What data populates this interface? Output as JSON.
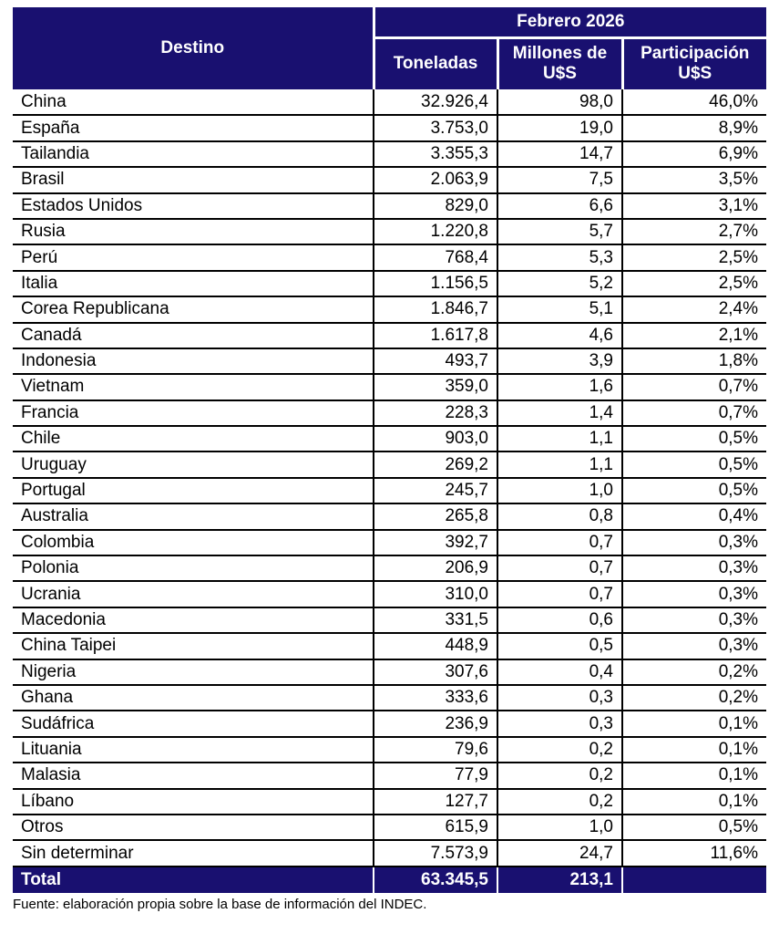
{
  "chart_data": {
    "type": "table",
    "title": "Febrero 2026",
    "row_header": "Destino",
    "columns": [
      "Toneladas",
      "Millones de U$S",
      "Participación U$S"
    ],
    "rows": [
      [
        "China",
        "32.926,4",
        "98,0",
        "46,0%"
      ],
      [
        "España",
        "3.753,0",
        "19,0",
        "8,9%"
      ],
      [
        "Tailandia",
        "3.355,3",
        "14,7",
        "6,9%"
      ],
      [
        "Brasil",
        "2.063,9",
        "7,5",
        "3,5%"
      ],
      [
        "Estados Unidos",
        "829,0",
        "6,6",
        "3,1%"
      ],
      [
        "Rusia",
        "1.220,8",
        "5,7",
        "2,7%"
      ],
      [
        "Perú",
        "768,4",
        "5,3",
        "2,5%"
      ],
      [
        "Italia",
        "1.156,5",
        "5,2",
        "2,5%"
      ],
      [
        "Corea Republicana",
        "1.846,7",
        "5,1",
        "2,4%"
      ],
      [
        "Canadá",
        "1.617,8",
        "4,6",
        "2,1%"
      ],
      [
        "Indonesia",
        "493,7",
        "3,9",
        "1,8%"
      ],
      [
        "Vietnam",
        "359,0",
        "1,6",
        "0,7%"
      ],
      [
        "Francia",
        "228,3",
        "1,4",
        "0,7%"
      ],
      [
        "Chile",
        "903,0",
        "1,1",
        "0,5%"
      ],
      [
        "Uruguay",
        "269,2",
        "1,1",
        "0,5%"
      ],
      [
        "Portugal",
        "245,7",
        "1,0",
        "0,5%"
      ],
      [
        "Australia",
        "265,8",
        "0,8",
        "0,4%"
      ],
      [
        "Colombia",
        "392,7",
        "0,7",
        "0,3%"
      ],
      [
        "Polonia",
        "206,9",
        "0,7",
        "0,3%"
      ],
      [
        "Ucrania",
        "310,0",
        "0,7",
        "0,3%"
      ],
      [
        "Macedonia",
        "331,5",
        "0,6",
        "0,3%"
      ],
      [
        "China Taipei",
        "448,9",
        "0,5",
        "0,3%"
      ],
      [
        "Nigeria",
        "307,6",
        "0,4",
        "0,2%"
      ],
      [
        "Ghana",
        "333,6",
        "0,3",
        "0,2%"
      ],
      [
        "Sudáfrica",
        "236,9",
        "0,3",
        "0,1%"
      ],
      [
        "Lituania",
        "79,6",
        "0,2",
        "0,1%"
      ],
      [
        "Malasia",
        "77,9",
        "0,2",
        "0,1%"
      ],
      [
        "Líbano",
        "127,7",
        "0,2",
        "0,1%"
      ],
      [
        "Otros",
        "615,9",
        "1,0",
        "0,5%"
      ],
      [
        "Sin determinar",
        "7.573,9",
        "24,7",
        "11,6%"
      ]
    ],
    "total_row": {
      "label": "Total",
      "toneladas": "63.345,5",
      "millones": "213,1",
      "participacion": ""
    }
  },
  "footer": {
    "source": "Fuente: elaboración propia sobre la base de información del INDEC."
  },
  "colors": {
    "header_bg": "#191070",
    "header_text": "#ffffff",
    "body_text": "#000000",
    "grid_line": "#000000"
  }
}
